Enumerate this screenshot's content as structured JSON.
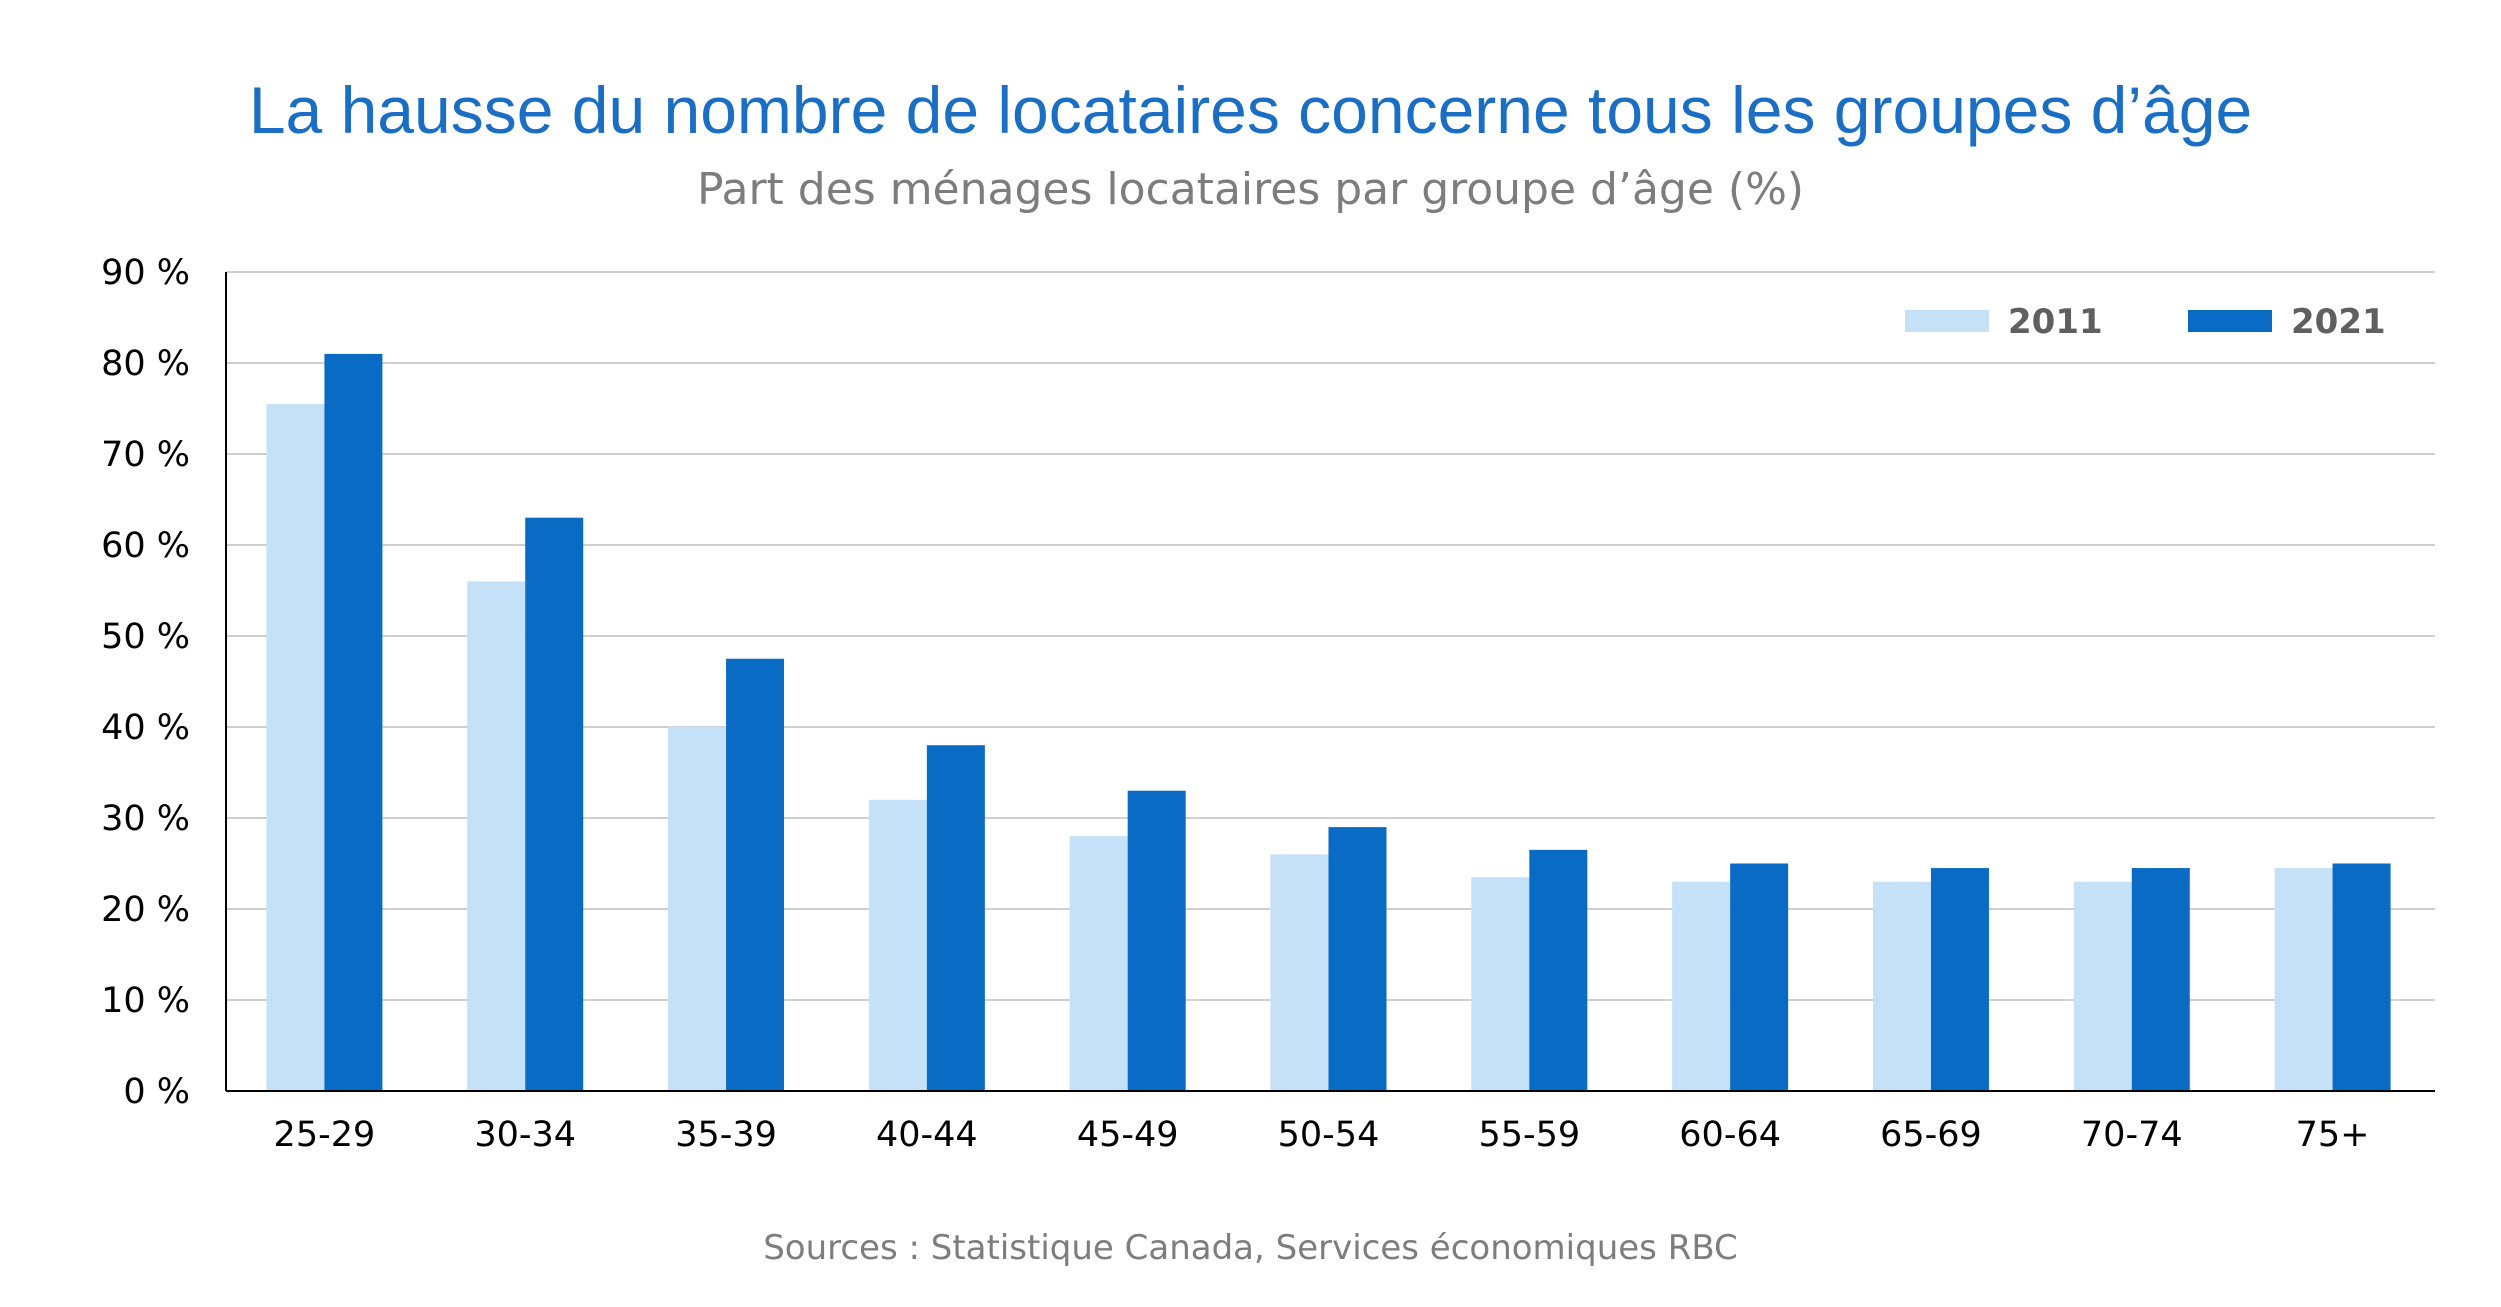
{
  "chart_data": {
    "type": "bar",
    "title": "La hausse du nombre de locataires concerne tous les groupes d’âge",
    "subtitle": "Part des ménages locataires par groupe d’âge (%)",
    "source": "Sources : Statistique Canada, Services économiques RBC",
    "categories": [
      "25-29",
      "30-34",
      "35-39",
      "40-44",
      "45-49",
      "50-54",
      "55-59",
      "60-64",
      "65-69",
      "70-74",
      "75+"
    ],
    "series": [
      {
        "name": "2011",
        "color": "#c5e1f8",
        "values": [
          75.5,
          56,
          40,
          32,
          28,
          26,
          23.5,
          23,
          23,
          23,
          24.5
        ]
      },
      {
        "name": "2021",
        "color": "#0a6bc4",
        "values": [
          81,
          63,
          47.5,
          38,
          33,
          29,
          26.5,
          25,
          24.5,
          24.5,
          25
        ]
      }
    ],
    "ylim": [
      0,
      90
    ],
    "yticks": [
      0,
      10,
      20,
      30,
      40,
      50,
      60,
      70,
      80,
      90
    ],
    "ytick_labels": [
      "0 %",
      "10 %",
      "20 %",
      "30 %",
      "40 %",
      "50 %",
      "60 %",
      "70 %",
      "80 %",
      "90 %"
    ],
    "grid": true,
    "legend_position": "top-right"
  }
}
